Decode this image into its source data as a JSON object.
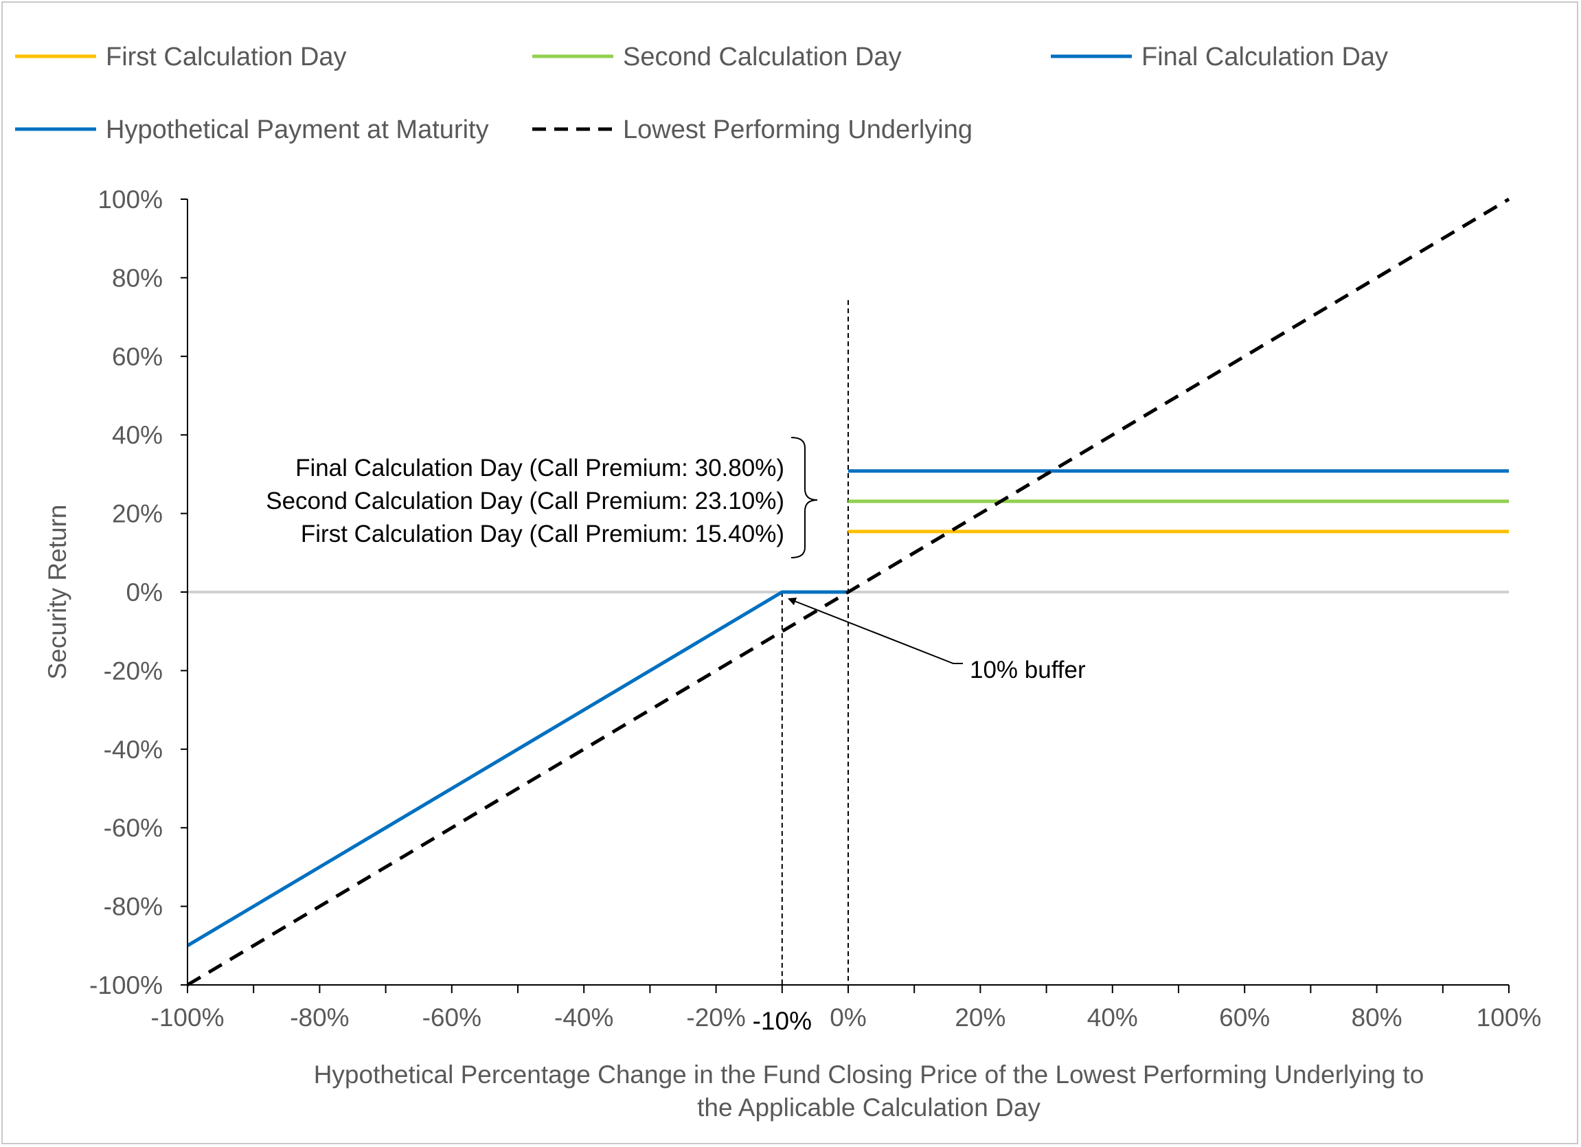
{
  "chart_data": {
    "type": "line",
    "legend_position": "top",
    "legend": [
      {
        "label": "First Calculation Day",
        "color": "#FFC000",
        "style": "solid"
      },
      {
        "label": "Second Calculation Day",
        "color": "#92D050",
        "style": "solid"
      },
      {
        "label": "Final Calculation Day",
        "color": "#0070C0",
        "style": "solid"
      },
      {
        "label": "Hypothetical Payment at Maturity",
        "color": "#0070C0",
        "style": "solid"
      },
      {
        "label": "Lowest Performing Underlying",
        "color": "#000000",
        "style": "dashed"
      }
    ],
    "xlabel": "Hypothetical Percentage Change in the Fund Closing Price of the Lowest Performing Underlying to the Applicable Calculation Day",
    "xlabel_lines": [
      "Hypothetical Percentage Change in the Fund Closing Price of the Lowest Performing Underlying to",
      "the Applicable Calculation Day"
    ],
    "ylabel": "Security Return",
    "xlim": [
      -100,
      100
    ],
    "ylim": [
      -100,
      100
    ],
    "x_ticks": [
      -100,
      -80,
      -60,
      -40,
      -20,
      0,
      20,
      40,
      60,
      80,
      100
    ],
    "x_tick_labels": [
      "-100%",
      "-80%",
      "-60%",
      "-40%",
      "-20%",
      "0%",
      "20%",
      "40%",
      "60%",
      "80%",
      "100%"
    ],
    "y_ticks": [
      100,
      80,
      60,
      40,
      20,
      0,
      -20,
      -40,
      -60,
      -80,
      -100
    ],
    "y_tick_labels": [
      "100%",
      "80%",
      "60%",
      "40%",
      "20%",
      "0%",
      "-20%",
      "-40%",
      "-60%",
      "-80%",
      "-100%"
    ],
    "extra_x_label": {
      "x": -10,
      "text": "-10%"
    },
    "vertical_refs": [
      -10,
      0
    ],
    "series": [
      {
        "name": "First Calculation Day",
        "color": "#FFC000",
        "style": "solid",
        "points": [
          [
            0,
            15.4
          ],
          [
            100,
            15.4
          ]
        ]
      },
      {
        "name": "Second Calculation Day",
        "color": "#92D050",
        "style": "solid",
        "points": [
          [
            0,
            23.1
          ],
          [
            100,
            23.1
          ]
        ]
      },
      {
        "name": "Final Calculation Day",
        "color": "#0070C0",
        "style": "solid",
        "points": [
          [
            0,
            30.8
          ],
          [
            100,
            30.8
          ]
        ]
      },
      {
        "name": "Hypothetical Payment at Maturity",
        "color": "#0070C0",
        "style": "solid",
        "points": [
          [
            -100,
            -90
          ],
          [
            -10,
            0
          ],
          [
            0,
            0
          ]
        ]
      },
      {
        "name": "Lowest Performing Underlying",
        "color": "#000000",
        "style": "dashed",
        "points": [
          [
            -100,
            -100
          ],
          [
            100,
            100
          ]
        ]
      }
    ],
    "annotations": {
      "bracket_labels": [
        "Final Calculation Day (Call Premium: 30.80%)",
        "Second Calculation Day (Call Premium: 23.10%)",
        "First Calculation Day (Call Premium: 15.40%)"
      ],
      "buffer_label": "10% buffer",
      "buffer_arrow_target": [
        -10,
        0
      ]
    },
    "colors": {
      "axis": "#000000",
      "zero_line": "#D0D0D0",
      "text": "#595959"
    }
  }
}
